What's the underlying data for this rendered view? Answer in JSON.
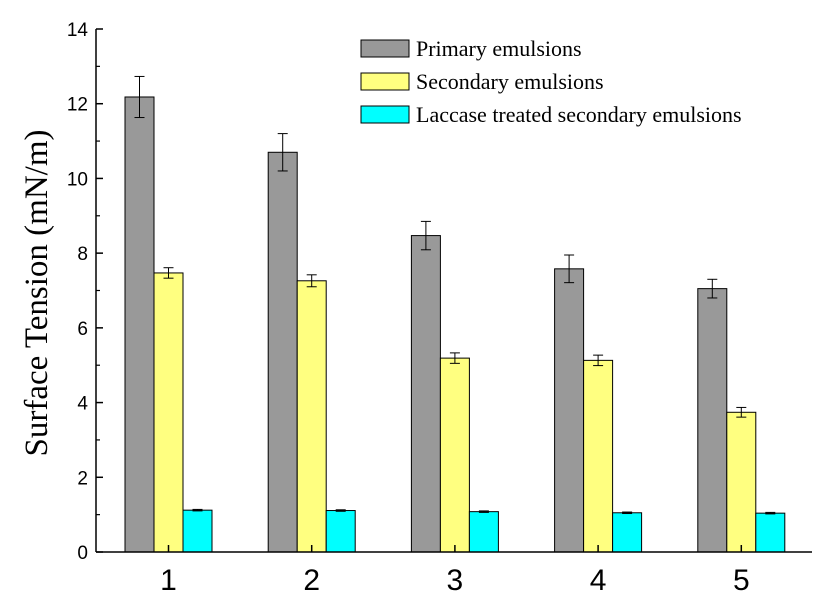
{
  "chart_data": {
    "type": "bar",
    "categories": [
      "1",
      "2",
      "3",
      "4",
      "5"
    ],
    "series": [
      {
        "name": "Primary emulsions",
        "values": [
          12.18,
          10.7,
          8.47,
          7.58,
          7.05
        ],
        "errors": [
          0.55,
          0.5,
          0.38,
          0.37,
          0.25
        ],
        "color": "#999999"
      },
      {
        "name": "Secondary emulsions",
        "values": [
          7.47,
          7.26,
          5.19,
          5.13,
          3.74
        ],
        "errors": [
          0.14,
          0.16,
          0.14,
          0.14,
          0.13
        ],
        "color": "#ffff80"
      },
      {
        "name": "Laccase treated secondary emulsions",
        "values": [
          1.12,
          1.11,
          1.08,
          1.05,
          1.04
        ],
        "errors": [
          0.02,
          0.02,
          0.02,
          0.02,
          0.02
        ],
        "color": "#00ffff"
      }
    ],
    "title": "",
    "xlabel": "",
    "ylabel": "Surface Tension (mN/m)",
    "ylim": [
      0,
      14
    ],
    "yticks": [
      "0",
      "2",
      "4",
      "6",
      "8",
      "10",
      "12",
      "14"
    ],
    "grid": false,
    "legend_position": "top-right"
  }
}
